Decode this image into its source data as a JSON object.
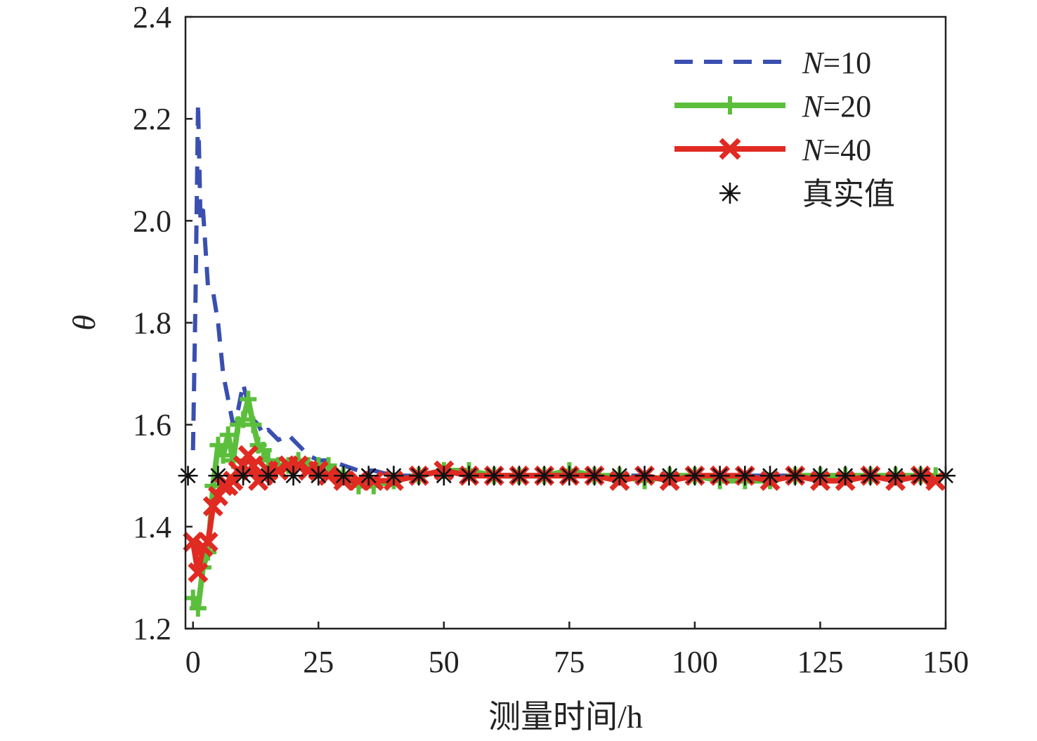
{
  "chart_data": {
    "type": "line",
    "xlabel": "测量时间/h",
    "ylabel": "θ",
    "xlim": [
      -1.5,
      150
    ],
    "ylim": [
      1.2,
      2.4
    ],
    "xticks": [
      0,
      25,
      50,
      75,
      100,
      125,
      150
    ],
    "yticks": [
      1.2,
      1.4,
      1.6,
      1.8,
      2.0,
      2.2,
      2.4
    ],
    "xtick_labels": [
      "0",
      "25",
      "50",
      "75",
      "100",
      "125",
      "150"
    ],
    "ytick_labels": [
      "1.2",
      "1.4",
      "1.6",
      "1.8",
      "2.0",
      "2.2",
      "2.4"
    ],
    "grid": false,
    "legend_position": "top-right",
    "series": [
      {
        "name": "N=10",
        "name_parts": [
          "N",
          "=10"
        ],
        "style": "dashed",
        "color": "#3a4fb0",
        "marker": "none",
        "x": [
          0,
          0.5,
          1,
          1.5,
          2,
          3,
          4,
          5,
          6,
          7,
          8,
          9,
          10,
          11,
          12,
          13,
          14,
          15,
          17,
          19,
          21,
          23,
          25,
          27,
          30,
          33,
          36,
          40,
          45,
          50,
          55,
          60,
          65,
          70,
          75,
          80,
          85,
          90,
          95,
          100,
          105,
          110,
          115,
          120,
          125,
          130,
          135,
          140,
          145,
          148
        ],
        "y": [
          1.55,
          1.85,
          2.23,
          2.0,
          2.02,
          1.87,
          1.86,
          1.8,
          1.7,
          1.65,
          1.6,
          1.63,
          1.68,
          1.64,
          1.61,
          1.6,
          1.58,
          1.59,
          1.57,
          1.58,
          1.56,
          1.54,
          1.53,
          1.53,
          1.52,
          1.51,
          1.51,
          1.5,
          1.5,
          1.51,
          1.5,
          1.5,
          1.5,
          1.5,
          1.51,
          1.5,
          1.5,
          1.5,
          1.49,
          1.5,
          1.5,
          1.5,
          1.5,
          1.5,
          1.5,
          1.5,
          1.5,
          1.5,
          1.5,
          1.5
        ]
      },
      {
        "name": "N=20",
        "name_parts": [
          "N",
          "=20"
        ],
        "style": "solid",
        "color": "#5bbf3c",
        "marker": "plus",
        "x": [
          0,
          1,
          2,
          3,
          4,
          5,
          6,
          7,
          8,
          9,
          10,
          11,
          12,
          13,
          14,
          15,
          17,
          19,
          21,
          23,
          25,
          27,
          30,
          33,
          36,
          40,
          45,
          50,
          55,
          60,
          65,
          70,
          75,
          80,
          85,
          90,
          95,
          100,
          105,
          110,
          115,
          120,
          125,
          130,
          135,
          140,
          145,
          148
        ],
        "y": [
          1.26,
          1.24,
          1.32,
          1.35,
          1.48,
          1.56,
          1.54,
          1.58,
          1.53,
          1.6,
          1.61,
          1.65,
          1.6,
          1.56,
          1.55,
          1.53,
          1.52,
          1.52,
          1.53,
          1.52,
          1.52,
          1.52,
          1.5,
          1.48,
          1.48,
          1.49,
          1.5,
          1.51,
          1.51,
          1.5,
          1.5,
          1.5,
          1.51,
          1.5,
          1.5,
          1.49,
          1.5,
          1.5,
          1.49,
          1.49,
          1.49,
          1.5,
          1.5,
          1.5,
          1.5,
          1.5,
          1.5,
          1.5
        ]
      },
      {
        "name": "N=40",
        "name_parts": [
          "N",
          "=40"
        ],
        "style": "solid",
        "color": "#e02a22",
        "marker": "x",
        "x": [
          0,
          1,
          2,
          3,
          4,
          5,
          6,
          7,
          8,
          9,
          10,
          11,
          12,
          13,
          14,
          15,
          17,
          19,
          21,
          23,
          25,
          27,
          30,
          33,
          36,
          40,
          45,
          50,
          55,
          60,
          65,
          70,
          75,
          80,
          85,
          90,
          95,
          100,
          105,
          110,
          115,
          120,
          125,
          130,
          135,
          140,
          145,
          148
        ],
        "y": [
          1.37,
          1.31,
          1.36,
          1.37,
          1.44,
          1.46,
          1.48,
          1.48,
          1.49,
          1.51,
          1.52,
          1.54,
          1.52,
          1.49,
          1.5,
          1.51,
          1.51,
          1.52,
          1.52,
          1.51,
          1.51,
          1.5,
          1.49,
          1.49,
          1.49,
          1.49,
          1.5,
          1.51,
          1.5,
          1.5,
          1.5,
          1.5,
          1.5,
          1.5,
          1.49,
          1.5,
          1.49,
          1.5,
          1.5,
          1.5,
          1.49,
          1.5,
          1.49,
          1.49,
          1.5,
          1.49,
          1.5,
          1.49
        ]
      },
      {
        "name": "真实值",
        "name_parts": [
          "",
          "真实值"
        ],
        "style": "none",
        "color": "#111111",
        "marker": "asterisk",
        "x": [
          -1,
          5,
          10,
          15,
          20,
          25,
          30,
          35,
          40,
          45,
          50,
          55,
          60,
          65,
          70,
          75,
          80,
          85,
          90,
          95,
          100,
          105,
          110,
          115,
          120,
          125,
          130,
          135,
          140,
          145,
          150
        ],
        "y": [
          1.5,
          1.5,
          1.5,
          1.5,
          1.5,
          1.5,
          1.5,
          1.5,
          1.5,
          1.5,
          1.5,
          1.5,
          1.5,
          1.5,
          1.5,
          1.5,
          1.5,
          1.5,
          1.5,
          1.5,
          1.5,
          1.5,
          1.5,
          1.5,
          1.5,
          1.5,
          1.5,
          1.5,
          1.5,
          1.5,
          1.5
        ]
      }
    ]
  }
}
